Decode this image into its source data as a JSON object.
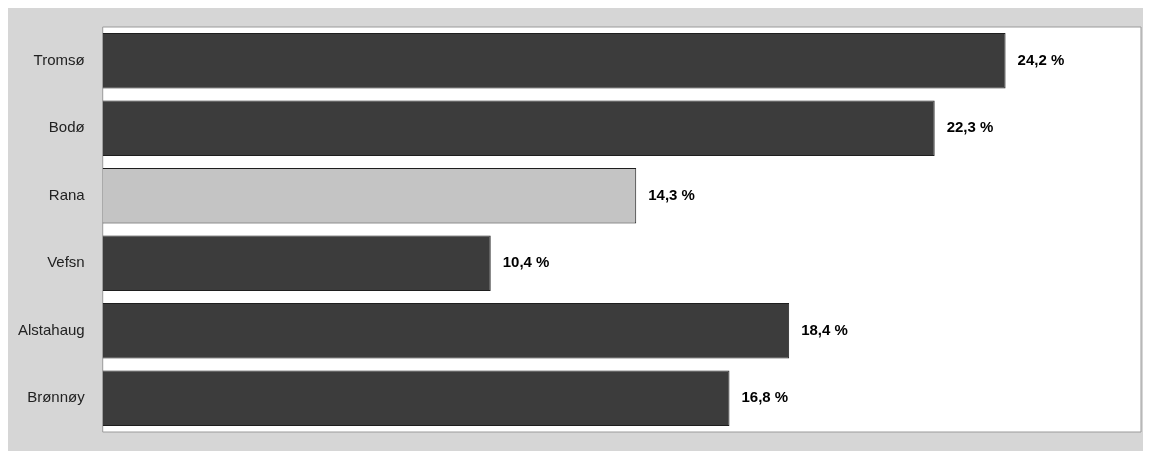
{
  "chart_data": {
    "type": "bar",
    "orientation": "horizontal",
    "categories": [
      "Tromsø",
      "Bodø",
      "Rana",
      "Vefsn",
      "Alstahaug",
      "Brønnøy"
    ],
    "values": [
      24.2,
      22.3,
      14.3,
      10.4,
      18.4,
      16.8
    ],
    "colors": [
      "#3c3c3c",
      "#3c3c3c",
      "#c4c4c4",
      "#3c3c3c",
      "#3c3c3c",
      "#3c3c3c"
    ],
    "value_labels": [
      "24,2 %",
      "22,3 %",
      "14,3 %",
      "10,4 %",
      "18,4 %",
      "16,8 %"
    ],
    "legend": false
  }
}
